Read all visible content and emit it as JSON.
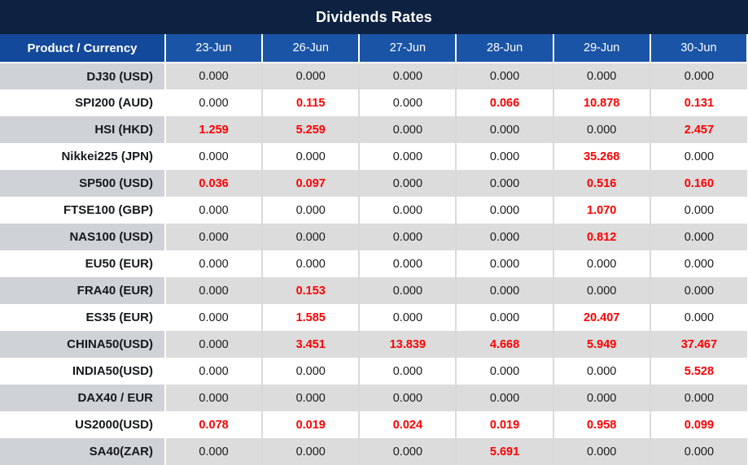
{
  "title": "Dividends Rates",
  "table": {
    "header_label": "Product / Currency",
    "dates": [
      "23-Jun",
      "26-Jun",
      "27-Jun",
      "28-Jun",
      "29-Jun",
      "30-Jun"
    ],
    "rows": [
      {
        "product": "DJ30 (USD)",
        "values": [
          "0.000",
          "0.000",
          "0.000",
          "0.000",
          "0.000",
          "0.000"
        ]
      },
      {
        "product": "SPI200 (AUD)",
        "values": [
          "0.000",
          "0.115",
          "0.000",
          "0.066",
          "10.878",
          "0.131"
        ]
      },
      {
        "product": "HSI (HKD)",
        "values": [
          "1.259",
          "5.259",
          "0.000",
          "0.000",
          "0.000",
          "2.457"
        ]
      },
      {
        "product": "Nikkei225 (JPN)",
        "values": [
          "0.000",
          "0.000",
          "0.000",
          "0.000",
          "35.268",
          "0.000"
        ]
      },
      {
        "product": "SP500 (USD)",
        "values": [
          "0.036",
          "0.097",
          "0.000",
          "0.000",
          "0.516",
          "0.160"
        ]
      },
      {
        "product": "FTSE100 (GBP)",
        "values": [
          "0.000",
          "0.000",
          "0.000",
          "0.000",
          "1.070",
          "0.000"
        ]
      },
      {
        "product": "NAS100 (USD)",
        "values": [
          "0.000",
          "0.000",
          "0.000",
          "0.000",
          "0.812",
          "0.000"
        ]
      },
      {
        "product": "EU50 (EUR)",
        "values": [
          "0.000",
          "0.000",
          "0.000",
          "0.000",
          "0.000",
          "0.000"
        ]
      },
      {
        "product": "FRA40 (EUR)",
        "values": [
          "0.000",
          "0.153",
          "0.000",
          "0.000",
          "0.000",
          "0.000"
        ]
      },
      {
        "product": "ES35 (EUR)",
        "values": [
          "0.000",
          "1.585",
          "0.000",
          "0.000",
          "20.407",
          "0.000"
        ]
      },
      {
        "product": "CHINA50(USD)",
        "values": [
          "0.000",
          "3.451",
          "13.839",
          "4.668",
          "5.949",
          "37.467"
        ]
      },
      {
        "product": "INDIA50(USD)",
        "values": [
          "0.000",
          "0.000",
          "0.000",
          "0.000",
          "0.000",
          "5.528"
        ]
      },
      {
        "product": "DAX40 / EUR",
        "values": [
          "0.000",
          "0.000",
          "0.000",
          "0.000",
          "0.000",
          "0.000"
        ]
      },
      {
        "product": "US2000(USD)",
        "values": [
          "0.078",
          "0.019",
          "0.024",
          "0.019",
          "0.958",
          "0.099"
        ]
      },
      {
        "product": "SA40(ZAR)",
        "values": [
          "0.000",
          "0.000",
          "0.000",
          "5.691",
          "0.000",
          "0.000"
        ]
      }
    ]
  },
  "colors": {
    "title_bg": "#0c2240",
    "header_product_bg": "#13499a",
    "header_date_bg": "#1a54a6",
    "row_gray_product": "#cfd2d6",
    "row_gray_data": "#dcdcdc",
    "value_zero": "#1a1a1a",
    "value_nonzero": "#fe0000",
    "grid_line": "#d9d9d9"
  },
  "chart_data": {
    "type": "table",
    "title": "Dividends Rates",
    "columns": [
      "Product / Currency",
      "23-Jun",
      "26-Jun",
      "27-Jun",
      "28-Jun",
      "29-Jun",
      "30-Jun"
    ],
    "rows": [
      [
        "DJ30 (USD)",
        0.0,
        0.0,
        0.0,
        0.0,
        0.0,
        0.0
      ],
      [
        "SPI200 (AUD)",
        0.0,
        0.115,
        0.0,
        0.066,
        10.878,
        0.131
      ],
      [
        "HSI (HKD)",
        1.259,
        5.259,
        0.0,
        0.0,
        0.0,
        2.457
      ],
      [
        "Nikkei225 (JPN)",
        0.0,
        0.0,
        0.0,
        0.0,
        35.268,
        0.0
      ],
      [
        "SP500 (USD)",
        0.036,
        0.097,
        0.0,
        0.0,
        0.516,
        0.16
      ],
      [
        "FTSE100 (GBP)",
        0.0,
        0.0,
        0.0,
        0.0,
        1.07,
        0.0
      ],
      [
        "NAS100 (USD)",
        0.0,
        0.0,
        0.0,
        0.0,
        0.812,
        0.0
      ],
      [
        "EU50 (EUR)",
        0.0,
        0.0,
        0.0,
        0.0,
        0.0,
        0.0
      ],
      [
        "FRA40 (EUR)",
        0.0,
        0.153,
        0.0,
        0.0,
        0.0,
        0.0
      ],
      [
        "ES35 (EUR)",
        0.0,
        1.585,
        0.0,
        0.0,
        20.407,
        0.0
      ],
      [
        "CHINA50(USD)",
        0.0,
        3.451,
        13.839,
        4.668,
        5.949,
        37.467
      ],
      [
        "INDIA50(USD)",
        0.0,
        0.0,
        0.0,
        0.0,
        0.0,
        5.528
      ],
      [
        "DAX40 / EUR",
        0.0,
        0.0,
        0.0,
        0.0,
        0.0,
        0.0
      ],
      [
        "US2000(USD)",
        0.078,
        0.019,
        0.024,
        0.019,
        0.958,
        0.099
      ],
      [
        "SA40(ZAR)",
        0.0,
        0.0,
        0.0,
        5.691,
        0.0,
        0.0
      ]
    ],
    "notes": "Non-zero values rendered in red, zero values in black; rows alternate gray/white starting gray."
  }
}
